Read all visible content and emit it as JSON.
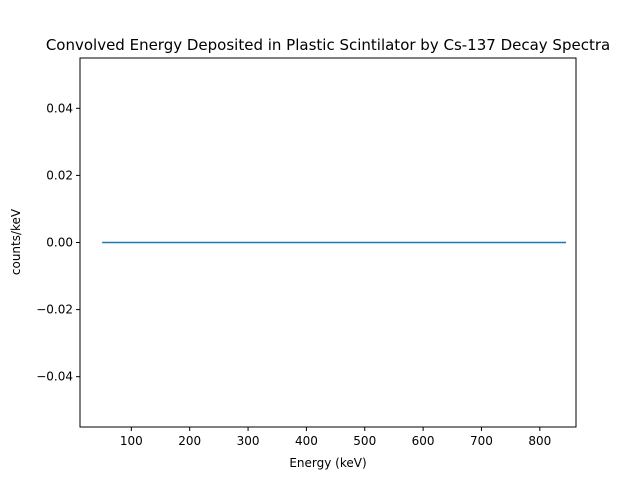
{
  "chart_data": {
    "type": "line",
    "title": "Convolved Energy Deposited in Plastic Scintilator by Cs-137 Decay Spectra",
    "xlabel": "Energy (keV)",
    "ylabel": "counts/keV",
    "xlim": [
      12,
      862
    ],
    "ylim": [
      -0.055,
      0.055
    ],
    "xticks": [
      100,
      200,
      300,
      400,
      500,
      600,
      700,
      800
    ],
    "xtick_labels": [
      "100",
      "200",
      "300",
      "400",
      "500",
      "600",
      "700",
      "800"
    ],
    "yticks": [
      -0.04,
      -0.02,
      0.0,
      0.02,
      0.04
    ],
    "ytick_labels": [
      "−0.04",
      "−0.02",
      "0.00",
      "0.02",
      "0.04"
    ],
    "grid": false,
    "series": [
      {
        "color": "#1f77b4",
        "x": [
          50,
          845
        ],
        "y": [
          0.0,
          0.0
        ]
      }
    ]
  }
}
